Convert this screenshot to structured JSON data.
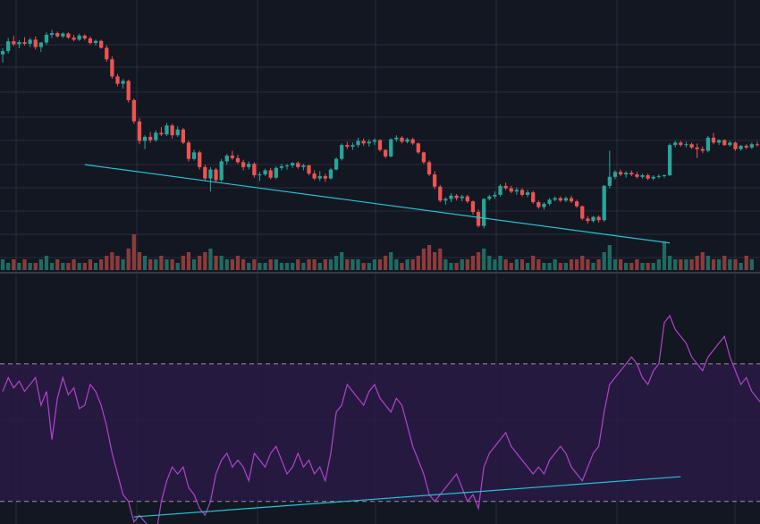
{
  "colors": {
    "background": "#131722",
    "grid": "#2a2e39",
    "bull": "#26a69a",
    "bear": "#ef5350",
    "bull_volume": "#1f6b61",
    "bear_volume": "#8c3b3b",
    "rsi_line": "#b044c8",
    "rsi_band": "#2a1a45",
    "rsi_level": "#b2b5be",
    "trendline": "#22c3d6",
    "separator": "#363a45"
  },
  "chart_data": [
    {
      "type": "candlestick",
      "title": "",
      "grid": true,
      "y_range": [
        40,
        100
      ],
      "candles": [
        [
          88.0,
          89.5,
          86.0,
          88.8
        ],
        [
          88.8,
          92.0,
          88.2,
          91.2
        ],
        [
          91.2,
          92.5,
          90.0,
          90.5
        ],
        [
          90.5,
          91.5,
          89.5,
          91.0
        ],
        [
          91.0,
          92.2,
          90.2,
          90.6
        ],
        [
          90.6,
          92.0,
          89.8,
          91.6
        ],
        [
          91.6,
          92.4,
          89.2,
          89.8
        ],
        [
          89.8,
          91.0,
          88.6,
          90.9
        ],
        [
          90.9,
          93.4,
          90.3,
          92.8
        ],
        [
          92.8,
          94.0,
          92.0,
          93.2
        ],
        [
          93.2,
          93.6,
          92.1,
          92.4
        ],
        [
          92.4,
          93.4,
          92.0,
          93.1
        ],
        [
          93.1,
          93.4,
          91.8,
          92.1
        ],
        [
          92.1,
          92.8,
          91.2,
          91.6
        ],
        [
          91.6,
          93.1,
          91.3,
          92.6
        ],
        [
          92.6,
          92.9,
          91.4,
          91.9
        ],
        [
          91.9,
          92.4,
          90.4,
          90.8
        ],
        [
          90.8,
          91.6,
          90.2,
          91.3
        ],
        [
          91.3,
          91.6,
          89.4,
          89.6
        ],
        [
          89.6,
          90.2,
          86.2,
          86.8
        ],
        [
          86.8,
          87.5,
          82.0,
          82.6
        ],
        [
          82.6,
          83.2,
          80.2,
          80.8
        ],
        [
          80.8,
          82.0,
          79.6,
          81.5
        ],
        [
          81.5,
          81.8,
          76.2,
          76.8
        ],
        [
          76.8,
          77.2,
          71.0,
          71.6
        ],
        [
          71.6,
          72.4,
          66.0,
          66.8
        ],
        [
          66.8,
          68.2,
          64.8,
          67.8
        ],
        [
          67.8,
          69.0,
          66.4,
          67.0
        ],
        [
          67.0,
          69.4,
          66.6,
          68.8
        ],
        [
          68.8,
          70.2,
          68.0,
          68.4
        ],
        [
          68.4,
          71.2,
          68.0,
          70.6
        ],
        [
          70.6,
          71.0,
          67.4,
          68.2
        ],
        [
          68.2,
          70.4,
          67.8,
          69.6
        ],
        [
          69.6,
          70.0,
          66.0,
          66.4
        ],
        [
          66.4,
          66.8,
          61.8,
          62.4
        ],
        [
          62.4,
          64.6,
          62.0,
          64.0
        ],
        [
          64.0,
          64.4,
          59.8,
          60.4
        ],
        [
          60.4,
          61.0,
          57.0,
          57.6
        ],
        [
          57.6,
          60.4,
          54.4,
          59.8
        ],
        [
          59.8,
          60.2,
          56.6,
          57.2
        ],
        [
          57.2,
          62.4,
          56.8,
          61.8
        ],
        [
          61.8,
          63.6,
          61.0,
          63.2
        ],
        [
          63.2,
          64.4,
          62.2,
          62.6
        ],
        [
          62.6,
          63.4,
          61.2,
          61.6
        ],
        [
          61.6,
          62.2,
          59.6,
          60.4
        ],
        [
          60.4,
          61.8,
          59.8,
          61.2
        ],
        [
          61.2,
          61.6,
          57.8,
          58.4
        ],
        [
          58.4,
          59.2,
          57.0,
          58.6
        ],
        [
          58.6,
          60.0,
          58.2,
          59.6
        ],
        [
          59.6,
          60.2,
          57.4,
          57.8
        ],
        [
          57.8,
          60.6,
          57.4,
          60.2
        ],
        [
          60.2,
          61.2,
          59.6,
          60.6
        ],
        [
          60.6,
          61.2,
          59.8,
          60.8
        ],
        [
          60.8,
          61.6,
          60.2,
          61.4
        ],
        [
          61.4,
          61.8,
          60.0,
          60.4
        ],
        [
          60.4,
          61.2,
          59.6,
          60.8
        ],
        [
          60.8,
          61.0,
          58.4,
          58.8
        ],
        [
          58.8,
          59.6,
          57.2,
          57.6
        ],
        [
          57.6,
          59.4,
          57.0,
          58.2
        ],
        [
          58.2,
          58.8,
          56.8,
          57.6
        ],
        [
          57.6,
          60.2,
          57.4,
          59.8
        ],
        [
          59.8,
          62.8,
          59.6,
          62.4
        ],
        [
          62.4,
          66.2,
          62.0,
          65.8
        ],
        [
          65.8,
          66.6,
          64.8,
          65.4
        ],
        [
          65.4,
          66.4,
          64.6,
          65.8
        ],
        [
          65.8,
          67.6,
          65.2,
          66.8
        ],
        [
          66.8,
          67.4,
          65.6,
          66.2
        ],
        [
          66.2,
          67.2,
          65.4,
          66.6
        ],
        [
          66.6,
          67.4,
          65.8,
          67.0
        ],
        [
          67.0,
          67.2,
          64.2,
          64.6
        ],
        [
          64.6,
          64.8,
          62.6,
          63.0
        ],
        [
          63.0,
          67.4,
          62.8,
          67.2
        ],
        [
          67.2,
          68.2,
          66.6,
          67.6
        ],
        [
          67.6,
          68.0,
          66.2,
          66.6
        ],
        [
          66.6,
          67.6,
          66.2,
          67.2
        ],
        [
          67.2,
          67.6,
          65.8,
          66.2
        ],
        [
          66.2,
          66.4,
          63.6,
          64.0
        ],
        [
          64.0,
          64.2,
          61.2,
          61.6
        ],
        [
          61.6,
          62.0,
          58.2,
          58.6
        ],
        [
          58.6,
          59.4,
          55.0,
          55.6
        ],
        [
          55.6,
          56.0,
          51.8,
          52.2
        ],
        [
          52.2,
          53.0,
          51.2,
          52.6
        ],
        [
          52.6,
          54.0,
          51.8,
          53.4
        ],
        [
          53.4,
          53.8,
          52.2,
          52.8
        ],
        [
          52.8,
          53.6,
          52.0,
          53.2
        ],
        [
          53.2,
          53.6,
          51.6,
          52.0
        ],
        [
          52.0,
          52.2,
          48.8,
          49.4
        ],
        [
          49.4,
          50.0,
          45.6,
          46.0
        ],
        [
          46.0,
          52.8,
          45.4,
          52.6
        ],
        [
          52.6,
          53.6,
          52.2,
          53.2
        ],
        [
          53.2,
          54.4,
          52.6,
          53.6
        ],
        [
          53.6,
          56.2,
          53.2,
          55.8
        ],
        [
          55.8,
          56.6,
          54.8,
          55.2
        ],
        [
          55.2,
          55.8,
          54.0,
          54.4
        ],
        [
          54.4,
          55.4,
          53.6,
          54.8
        ],
        [
          54.8,
          55.2,
          53.2,
          53.6
        ],
        [
          53.6,
          54.8,
          53.0,
          54.2
        ],
        [
          54.2,
          54.6,
          51.4,
          51.8
        ],
        [
          51.8,
          52.2,
          50.2,
          50.6
        ],
        [
          50.6,
          51.8,
          50.0,
          51.4
        ],
        [
          51.4,
          52.8,
          51.0,
          52.4
        ],
        [
          52.4,
          53.2,
          52.0,
          52.8
        ],
        [
          52.8,
          53.2,
          51.8,
          52.2
        ],
        [
          52.2,
          53.2,
          51.8,
          52.8
        ],
        [
          52.8,
          53.4,
          51.6,
          52.0
        ],
        [
          52.0,
          52.4,
          50.4,
          50.8
        ],
        [
          50.8,
          51.0,
          47.4,
          47.8
        ],
        [
          47.8,
          48.4,
          46.6,
          47.2
        ],
        [
          47.2,
          48.4,
          46.8,
          48.2
        ],
        [
          48.2,
          48.6,
          46.8,
          47.4
        ],
        [
          47.4,
          56.0,
          47.0,
          55.8
        ],
        [
          55.8,
          64.4,
          55.2,
          58.0
        ],
        [
          58.0,
          59.6,
          57.4,
          59.2
        ],
        [
          59.2,
          59.8,
          58.2,
          58.6
        ],
        [
          58.6,
          59.4,
          57.8,
          59.0
        ],
        [
          59.0,
          59.6,
          58.2,
          58.6
        ],
        [
          58.6,
          59.2,
          57.6,
          58.0
        ],
        [
          58.0,
          58.8,
          57.6,
          58.4
        ],
        [
          58.4,
          58.8,
          57.2,
          57.6
        ],
        [
          57.6,
          58.4,
          57.2,
          58.0
        ],
        [
          58.0,
          58.6,
          57.6,
          58.2
        ],
        [
          58.2,
          58.6,
          57.8,
          58.4
        ],
        [
          58.4,
          66.2,
          58.2,
          65.8
        ],
        [
          65.8,
          66.8,
          65.2,
          66.4
        ],
        [
          66.4,
          66.8,
          65.4,
          65.8
        ],
        [
          65.8,
          66.6,
          65.2,
          66.0
        ],
        [
          66.0,
          66.4,
          64.8,
          65.2
        ],
        [
          65.2,
          66.2,
          62.6,
          64.8
        ],
        [
          64.8,
          65.4,
          63.8,
          64.4
        ],
        [
          64.4,
          68.0,
          64.0,
          67.6
        ],
        [
          67.6,
          68.8,
          66.0,
          66.4
        ],
        [
          66.4,
          67.2,
          65.8,
          67.0
        ],
        [
          67.0,
          67.2,
          65.6,
          65.8
        ],
        [
          65.8,
          66.8,
          65.4,
          66.4
        ],
        [
          66.4,
          66.6,
          64.4,
          64.8
        ],
        [
          64.8,
          65.8,
          64.4,
          65.6
        ],
        [
          65.6,
          66.0,
          64.8,
          65.2
        ],
        [
          65.2,
          66.4,
          64.8,
          66.0
        ],
        [
          66.0,
          66.6,
          65.4,
          65.8
        ]
      ],
      "volume": [
        0.3,
        0.2,
        0.3,
        0.2,
        0.3,
        0.2,
        0.2,
        0.3,
        0.4,
        0.2,
        0.3,
        0.2,
        0.2,
        0.3,
        0.2,
        0.2,
        0.3,
        0.2,
        0.3,
        0.4,
        0.5,
        0.4,
        0.3,
        0.6,
        1.0,
        0.5,
        0.4,
        0.3,
        0.3,
        0.4,
        0.3,
        0.3,
        0.2,
        0.4,
        0.5,
        0.3,
        0.4,
        0.5,
        0.6,
        0.4,
        0.4,
        0.3,
        0.3,
        0.4,
        0.3,
        0.2,
        0.3,
        0.2,
        0.2,
        0.3,
        0.3,
        0.2,
        0.2,
        0.2,
        0.3,
        0.2,
        0.3,
        0.3,
        0.2,
        0.3,
        0.3,
        0.4,
        0.5,
        0.3,
        0.3,
        0.3,
        0.2,
        0.2,
        0.3,
        0.3,
        0.4,
        0.5,
        0.3,
        0.2,
        0.3,
        0.3,
        0.4,
        0.6,
        0.7,
        0.5,
        0.6,
        0.3,
        0.2,
        0.2,
        0.3,
        0.3,
        0.4,
        0.5,
        0.6,
        0.4,
        0.3,
        0.4,
        0.3,
        0.2,
        0.3,
        0.3,
        0.2,
        0.4,
        0.3,
        0.2,
        0.2,
        0.3,
        0.2,
        0.2,
        0.3,
        0.3,
        0.4,
        0.3,
        0.2,
        0.3,
        0.5,
        0.7,
        0.3,
        0.3,
        0.2,
        0.2,
        0.3,
        0.2,
        0.2,
        0.2,
        0.3,
        0.8,
        0.4,
        0.3,
        0.3,
        0.3,
        0.3,
        0.4,
        0.5,
        0.4,
        0.3,
        0.3,
        0.4,
        0.3,
        0.3,
        0.2,
        0.4,
        0.3
      ],
      "trendline": {
        "x": [
          15,
          122
        ],
        "y": [
          61.0,
          41.8
        ]
      }
    },
    {
      "type": "line",
      "title": "",
      "grid": true,
      "y_range": [
        25,
        90
      ],
      "levels": [
        70,
        30
      ],
      "series_values": [
        62,
        66,
        63,
        65,
        62,
        64,
        66,
        58,
        62,
        48,
        60,
        66,
        61,
        63,
        57,
        58,
        64,
        62,
        58,
        52,
        44,
        38,
        32,
        30,
        24,
        26,
        24,
        22,
        20,
        30,
        36,
        40,
        38,
        40,
        34,
        32,
        28,
        26,
        30,
        38,
        42,
        44,
        40,
        42,
        40,
        36,
        44,
        42,
        40,
        44,
        46,
        42,
        38,
        40,
        44,
        40,
        42,
        38,
        40,
        36,
        44,
        56,
        58,
        64,
        62,
        60,
        58,
        62,
        64,
        60,
        58,
        56,
        60,
        58,
        52,
        46,
        42,
        38,
        32,
        30,
        32,
        34,
        36,
        38,
        34,
        30,
        32,
        28,
        40,
        44,
        46,
        48,
        50,
        46,
        44,
        42,
        40,
        38,
        40,
        38,
        42,
        44,
        46,
        44,
        40,
        38,
        36,
        40,
        44,
        46,
        56,
        64,
        66,
        68,
        70,
        72,
        70,
        66,
        64,
        68,
        70,
        82,
        84,
        80,
        78,
        76,
        72,
        70,
        68,
        72,
        74,
        76,
        78,
        72,
        68,
        64,
        66,
        62,
        60,
        58,
        62,
        64,
        66,
        64
      ],
      "trendline": {
        "x": [
          24,
          124
        ],
        "y": [
          25.5,
          37.2
        ]
      }
    }
  ]
}
